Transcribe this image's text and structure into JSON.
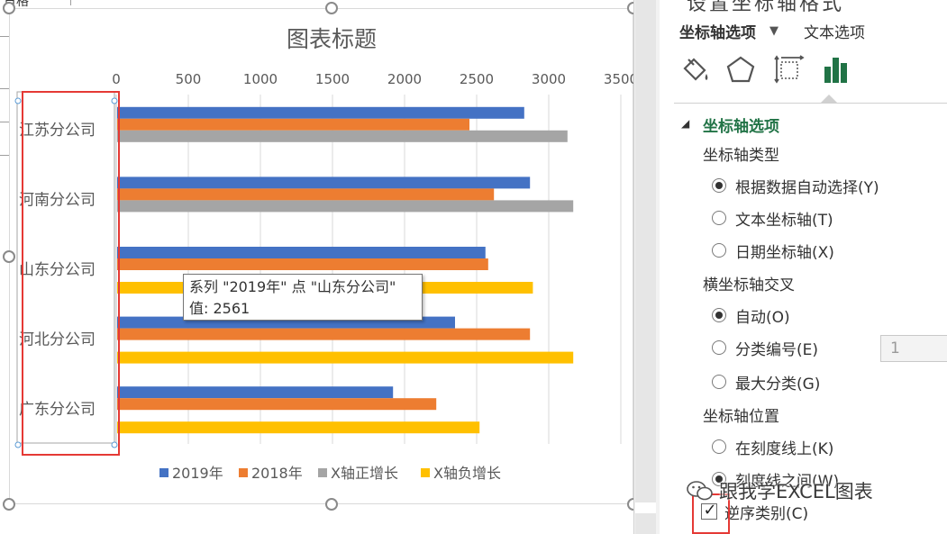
{
  "sheet": {
    "cell_fragment": "日格"
  },
  "chart_data": {
    "type": "bar",
    "orientation": "horizontal",
    "title": "图表标题",
    "categories": [
      "江苏分公司",
      "河南分公司",
      "山东分公司",
      "河北分公司",
      "广东分公司"
    ],
    "series": [
      {
        "name": "2019年",
        "color": "#4472c4",
        "values": [
          2830,
          2870,
          2561,
          2350,
          1920
        ]
      },
      {
        "name": "2018年",
        "color": "#ed7d31",
        "values": [
          2450,
          2620,
          2580,
          2870,
          2220
        ]
      },
      {
        "name": "X轴正增长",
        "color": "#a5a5a5",
        "values": [
          3130,
          3170,
          null,
          null,
          null
        ]
      },
      {
        "name": "X轴负增长",
        "color": "#ffc000",
        "values": [
          null,
          null,
          2890,
          3170,
          2520
        ]
      }
    ],
    "xlim": [
      0,
      3500
    ],
    "x_ticks": [
      "0",
      "500",
      "1000",
      "1500",
      "2000",
      "2500",
      "3000",
      "3500"
    ],
    "x_axis_position": "top",
    "categories_reversed": true,
    "grid": true,
    "legend": "bottom"
  },
  "tooltip": {
    "line1": "系列 \"2019年\" 点 \"山东分公司\"",
    "line2": "值: 2561"
  },
  "panel": {
    "top_cut_text": "设置坐标轴格式",
    "tab_axis": "坐标轴选项",
    "tab_text": "文本选项",
    "icons": [
      "fill-bucket-icon",
      "pentagon-icon",
      "size-properties-icon",
      "bar-chart-icon"
    ],
    "accent": "#217346",
    "section": "坐标轴选项",
    "axis_type_label": "坐标轴类型",
    "axis_type_options": [
      "根据数据自动选择(Y)",
      "文本坐标轴(T)",
      "日期坐标轴(X)"
    ],
    "axis_type_selected": 0,
    "cross_label": "横坐标轴交叉",
    "cross_options": [
      "自动(O)",
      "分类编号(E)",
      "最大分类(G)"
    ],
    "cross_selected": 0,
    "category_number_value": "1",
    "position_label": "坐标轴位置",
    "position_options": [
      "在刻度线上(K)",
      "刻度线之间(W)"
    ],
    "position_selected": 1,
    "reverse_label": "逆序类别(C)",
    "reverse_checked": true
  },
  "watermark": {
    "text": "跟我学EXCEL图表"
  }
}
